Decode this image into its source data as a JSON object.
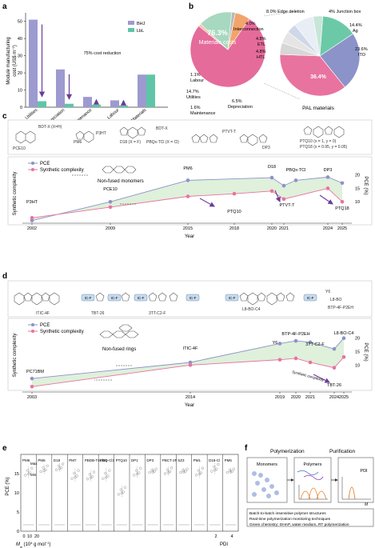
{
  "panels": {
    "a": "a",
    "b": "b",
    "c": "c",
    "d": "d",
    "e": "e",
    "f": "f"
  },
  "colors": {
    "bhj": "#9d9ad0",
    "lbl": "#5ec6a6",
    "arrow": "#6a3d9a",
    "pce": "#8b93c9",
    "synth": "#e8739e",
    "fill": "#d7ecd2",
    "pal": "#e8739e",
    "ito": "#8b93c9",
    "ag": "#6cc9a8"
  },
  "panel_a": {
    "ylabel_line1": "Module manufacturing",
    "ylabel_line2": "cost (US$ m",
    "ylabel_sup1": "−2",
    "ylabel_end": ")",
    "annotation": "75% cost reduction",
    "legend": [
      "BHJ",
      "LbL"
    ],
    "yticks": [
      "0",
      "10",
      "20",
      "30",
      "40",
      "50"
    ]
  },
  "chart_data": [
    {
      "type": "bar",
      "categories": [
        "Utilities",
        "Depreciation",
        "Maintenance",
        "Labour",
        "Materials"
      ],
      "series": [
        {
          "name": "BHJ",
          "values": [
            51,
            22,
            6,
            4,
            19
          ]
        },
        {
          "name": "LbL",
          "values": [
            3.5,
            2,
            1.5,
            1,
            19
          ]
        }
      ],
      "ylim": [
        0,
        55
      ]
    },
    {
      "type": "pie",
      "labels": [
        "Materials costs",
        "Labour",
        "Utilities",
        "Maintenance",
        "Depreciation"
      ],
      "values": [
        76.3,
        1.1,
        14.7,
        1.6,
        6.5
      ],
      "display": [
        "76.3%",
        "1.1%",
        "14.7%",
        "1.6%",
        "6.5%"
      ]
    },
    {
      "type": "pie",
      "labels": [
        "Junction box",
        "Ag",
        "ITO",
        "PAL materials",
        "HTL",
        "ETL",
        "Interconnection",
        "Edge deletion"
      ],
      "values": [
        4,
        14.4,
        23.6,
        36.4,
        4.8,
        4.8,
        4,
        8
      ],
      "display": [
        "4%",
        "14.4%",
        "23.6%",
        "36.4%",
        "4.8%",
        "4.8%",
        "4.0%",
        "8.0%"
      ]
    },
    {
      "type": "line",
      "x": [
        2002,
        2009,
        2015,
        2018,
        2020,
        2021,
        2022,
        2024,
        2025
      ],
      "labels": [
        "P3HT",
        "PCE10",
        "PM6",
        "PTQ10",
        "D18",
        "PTVT-T",
        "PBQx-TCl",
        "DP3",
        "PTQ18"
      ],
      "series": [
        {
          "name": "PCE",
          "points": [
            [
              2002,
              3
            ],
            [
              2009,
              10
            ],
            [
              2015,
              18
            ],
            [
              2020,
              19
            ],
            [
              2021,
              16
            ],
            [
              2022,
              18
            ],
            [
              2024,
              19.2
            ],
            [
              2025,
              17
            ]
          ]
        },
        {
          "name": "Synthetic complexity",
          "points": [
            [
              2002,
              4
            ],
            [
              2009,
              8
            ],
            [
              2015,
              12
            ],
            [
              2018,
              13
            ],
            [
              2020,
              14
            ],
            [
              2021,
              11
            ],
            [
              2024,
              15
            ],
            [
              2025,
              10
            ]
          ]
        }
      ]
    },
    {
      "type": "line",
      "x": [
        2003,
        2014,
        2019,
        2020,
        2021,
        2024,
        2025
      ],
      "labels": [
        "PC71BM",
        "ITIC-4F",
        "Y6",
        "BTP-4F-P2EH",
        "3TT-C2-F",
        "TBT-26",
        "L8-BO-C4"
      ],
      "series": [
        {
          "name": "PCE",
          "points": [
            [
              2003,
              5
            ],
            [
              2014,
              11
            ],
            [
              2019,
              18
            ],
            [
              2020,
              19
            ],
            [
              2021,
              18.5
            ],
            [
              2024,
              16
            ],
            [
              2025,
              20
            ]
          ]
        },
        {
          "name": "Synthetic complexity",
          "points": [
            [
              2003,
              2
            ],
            [
              2014,
              10
            ],
            [
              2019,
              12
            ],
            [
              2020,
              12.5
            ],
            [
              2021,
              11
            ],
            [
              2024,
              9
            ],
            [
              2025,
              13
            ]
          ]
        }
      ]
    },
    {
      "type": "scatter",
      "categories": [
        "PM6",
        "PM6",
        "D18",
        "PM7",
        "PBDB-T4Cl55",
        "PBQ-Cl3",
        "PTQ10",
        "DP1",
        "DP3",
        "PBCT-2F",
        "SZ3",
        "PM1",
        "D18-Cl",
        "PM6"
      ],
      "ylim": [
        0,
        20
      ]
    }
  ],
  "panel_b": {
    "main_label": "Materials costs",
    "labels": {
      "labour": "Labour",
      "utilities": "Utilities",
      "maintenance": "Maintenance",
      "depreciation": "Depreciation",
      "jbox": "Junction box",
      "ag": "Ag",
      "ito": "ITO",
      "pal": "PAL materials",
      "htl": "HTL",
      "etl": "ETL",
      "interconn": "Interconnection",
      "edge": "Edge deletion"
    }
  },
  "panel_c": {
    "ylabel": "Synthetic complexity",
    "ylabel_right": "PCE (%)",
    "xlabel": "Year",
    "legend": [
      "PCE",
      "Synthetic complexity"
    ],
    "motif": "Non-fused monomers",
    "xticks": [
      "2002",
      "2009",
      "2015",
      "2018",
      "2020",
      "2021",
      "2024",
      "2025"
    ],
    "yticks_right": [
      "10",
      "15",
      "20"
    ],
    "struct_labels": [
      "PCE10",
      "PM6",
      "P3HT",
      "D18 (X = F)",
      "PBQx-TCl (X = Cl)",
      "PTVT-T",
      "DP3",
      "PTQ10 (x = 1, y = 0)",
      "PTQ18 (x = 0.95, y = 0.05)",
      "BDT-X (X=H)",
      "BDT-X"
    ]
  },
  "panel_d": {
    "ylabel": "Synthetic complexity",
    "ylabel_right": "PCE (%)",
    "xlabel": "Year",
    "legend": [
      "PCE",
      "Synthetic complexity"
    ],
    "motif": "Non-fused rings",
    "xticks": [
      "2003",
      "2014",
      "2019",
      "2020",
      "2021",
      "2024",
      "2025"
    ],
    "yticks_right": [
      "10",
      "15",
      "20"
    ],
    "annot": "Synthetic complexity",
    "struct_labels": [
      "ITIC-4F",
      "TBT-26",
      "3TT-C2-F",
      "L8-BO-C4",
      "Y6",
      "L8-BO",
      "BTP-4F-P2EH",
      "IC-F"
    ]
  },
  "panel_e": {
    "ylabel": "PCE (%)",
    "xlabel": "M",
    "xlabel_sub": "w",
    "xlabel_rest": " (10",
    "xlabel_sup": "4",
    "xlabel_end": " g mol",
    "xlabel_sup2": "−1",
    "xlabel_close": ")",
    "xlabel2": "PDI",
    "yticks": [
      "0",
      "5",
      "10",
      "15"
    ],
    "minmax": [
      "Max",
      "Min"
    ],
    "xticks_left": [
      "0",
      "10",
      "20"
    ],
    "xticks_right": [
      "2",
      "4"
    ]
  },
  "panel_f": {
    "title1": "Polymerization",
    "title2": "Purification",
    "box1": "Monomers",
    "box2": "Polymers",
    "box3": "PDI",
    "axis": "M",
    "notes": [
      "Batch-to-batch insensitive polymer structures",
      "Real-time polymerization monitoring techniques",
      "Green chemistry: DHAP, water medium, RT polymerization"
    ]
  }
}
